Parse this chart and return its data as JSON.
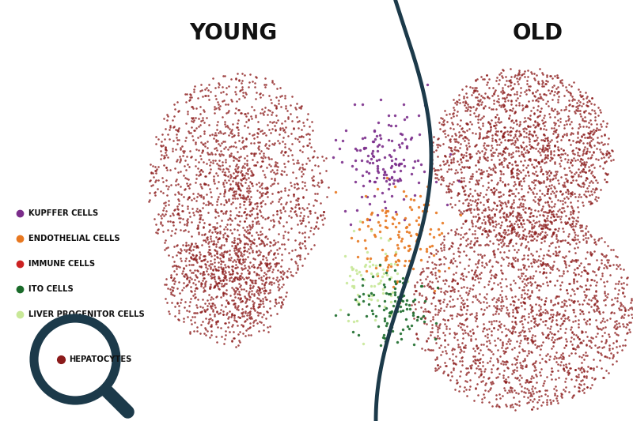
{
  "background_color": "#ffffff",
  "title_young": "YOUNG",
  "title_old": "OLD",
  "title_fontsize": 20,
  "title_fontweight": "bold",
  "hepa_color": "#8B1A1A",
  "hepa_alpha": 0.8,
  "hepa_size": 3.5,
  "kupffer_color": "#7B2D8B",
  "endothelial_color": "#E87820",
  "ito_color": "#1A6B2A",
  "liver_progenitor_color": "#C8E898",
  "divider_color": "#1C3A4A",
  "divider_lw": 3.5,
  "legend_items": [
    {
      "label": "KUPFFER CELLS",
      "color": "#7B2D8B"
    },
    {
      "label": "ENDOTHELIAL CELLS",
      "color": "#E87820"
    },
    {
      "label": "IMMUNE CELLS",
      "color": "#CC2222"
    },
    {
      "label": "ITO CELLS",
      "color": "#1A6B2A"
    },
    {
      "label": "LIVER PROGENITOR CELLS",
      "color": "#C8E898"
    }
  ],
  "magnifier_label": "HEPATOCYTES",
  "magnifier_color": "#1C3A4A",
  "hepatocyte_dot_color": "#8B1A1A"
}
